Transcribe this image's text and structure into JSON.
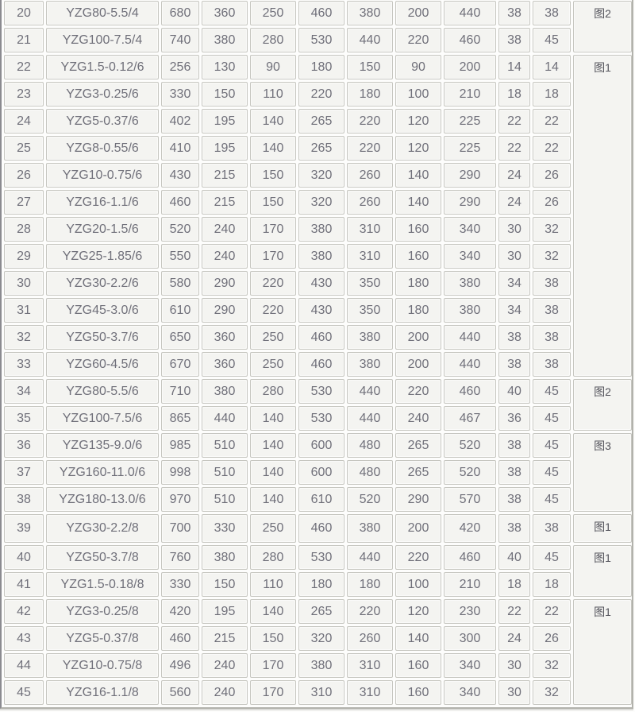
{
  "colors": {
    "page_bg": "#fdfdfc",
    "cell_bg": "#f4f4f1",
    "cell_border": "#c6c6c0",
    "text": "#70707a",
    "figure_text": "#54545c",
    "outer_border": "#b2b2ac",
    "left_border": "#8b8b90"
  },
  "table": {
    "rows": [
      {
        "no": "20",
        "model": "YZG80-5.5/4",
        "values": [
          "680",
          "360",
          "250",
          "460",
          "380",
          "200",
          "440",
          "38",
          "38"
        ],
        "fig": "图2",
        "fig_rowspan": 2
      },
      {
        "no": "21",
        "model": "YZG100-7.5/4",
        "values": [
          "740",
          "380",
          "280",
          "530",
          "440",
          "220",
          "460",
          "38",
          "45"
        ]
      },
      {
        "no": "22",
        "model": "YZG1.5-0.12/6",
        "values": [
          "256",
          "130",
          "90",
          "180",
          "150",
          "90",
          "200",
          "14",
          "14"
        ],
        "fig": "图1",
        "fig_rowspan": 12
      },
      {
        "no": "23",
        "model": "YZG3-0.25/6",
        "values": [
          "330",
          "150",
          "110",
          "220",
          "180",
          "100",
          "210",
          "18",
          "18"
        ]
      },
      {
        "no": "24",
        "model": "YZG5-0.37/6",
        "values": [
          "402",
          "195",
          "140",
          "265",
          "220",
          "120",
          "225",
          "22",
          "22"
        ]
      },
      {
        "no": "25",
        "model": "YZG8-0.55/6",
        "values": [
          "410",
          "195",
          "140",
          "265",
          "220",
          "120",
          "225",
          "22",
          "22"
        ]
      },
      {
        "no": "26",
        "model": "YZG10-0.75/6",
        "values": [
          "430",
          "215",
          "150",
          "320",
          "260",
          "140",
          "290",
          "24",
          "26"
        ]
      },
      {
        "no": "27",
        "model": "YZG16-1.1/6",
        "values": [
          "460",
          "215",
          "150",
          "320",
          "260",
          "140",
          "290",
          "24",
          "26"
        ]
      },
      {
        "no": "28",
        "model": "YZG20-1.5/6",
        "values": [
          "520",
          "240",
          "170",
          "380",
          "310",
          "160",
          "340",
          "30",
          "32"
        ]
      },
      {
        "no": "29",
        "model": "YZG25-1.85/6",
        "values": [
          "550",
          "240",
          "170",
          "380",
          "310",
          "160",
          "340",
          "30",
          "32"
        ]
      },
      {
        "no": "30",
        "model": "YZG30-2.2/6",
        "values": [
          "580",
          "290",
          "220",
          "430",
          "350",
          "180",
          "380",
          "34",
          "38"
        ]
      },
      {
        "no": "31",
        "model": "YZG45-3.0/6",
        "values": [
          "610",
          "290",
          "220",
          "430",
          "350",
          "180",
          "380",
          "34",
          "38"
        ]
      },
      {
        "no": "32",
        "model": "YZG50-3.7/6",
        "values": [
          "650",
          "360",
          "250",
          "460",
          "380",
          "200",
          "440",
          "38",
          "38"
        ]
      },
      {
        "no": "33",
        "model": "YZG60-4.5/6",
        "values": [
          "670",
          "360",
          "250",
          "460",
          "380",
          "200",
          "440",
          "38",
          "38"
        ]
      },
      {
        "no": "34",
        "model": "YZG80-5.5/6",
        "values": [
          "710",
          "380",
          "280",
          "530",
          "440",
          "220",
          "460",
          "40",
          "45"
        ],
        "fig": "图2",
        "fig_rowspan": 2
      },
      {
        "no": "35",
        "model": "YZG100-7.5/6",
        "values": [
          "865",
          "440",
          "140",
          "530",
          "440",
          "240",
          "467",
          "36",
          "45"
        ]
      },
      {
        "no": "36",
        "model": "YZG135-9.0/6",
        "values": [
          "985",
          "510",
          "140",
          "600",
          "480",
          "265",
          "520",
          "38",
          "45"
        ],
        "fig": "图3",
        "fig_rowspan": 3
      },
      {
        "no": "37",
        "model": "YZG160-11.0/6",
        "values": [
          "998",
          "510",
          "140",
          "600",
          "480",
          "265",
          "520",
          "38",
          "45"
        ]
      },
      {
        "no": "38",
        "model": "YZG180-13.0/6",
        "values": [
          "970",
          "510",
          "140",
          "610",
          "520",
          "290",
          "570",
          "38",
          "45"
        ]
      },
      {
        "no": "39",
        "model": "YZG30-2.2/8",
        "values": [
          "700",
          "330",
          "250",
          "460",
          "380",
          "200",
          "420",
          "38",
          "38"
        ],
        "fig": "图1",
        "fig_rowspan": 1
      },
      {
        "no": "40",
        "model": "YZG50-3.7/8",
        "values": [
          "760",
          "380",
          "280",
          "530",
          "440",
          "220",
          "460",
          "40",
          "45"
        ],
        "fig": "图1",
        "fig_rowspan": 2
      },
      {
        "no": "41",
        "model": "YZG1.5-0.18/8",
        "values": [
          "330",
          "150",
          "110",
          "180",
          "180",
          "100",
          "210",
          "18",
          "18"
        ]
      },
      {
        "no": "42",
        "model": "YZG3-0.25/8",
        "values": [
          "420",
          "195",
          "140",
          "265",
          "220",
          "120",
          "230",
          "22",
          "22"
        ],
        "fig": "图1",
        "fig_rowspan": 4
      },
      {
        "no": "43",
        "model": "YZG5-0.37/8",
        "values": [
          "460",
          "215",
          "150",
          "320",
          "260",
          "140",
          "300",
          "24",
          "26"
        ]
      },
      {
        "no": "44",
        "model": "YZG10-0.75/8",
        "values": [
          "496",
          "240",
          "170",
          "380",
          "310",
          "160",
          "340",
          "30",
          "32"
        ]
      },
      {
        "no": "45",
        "model": "YZG16-1.1/8",
        "values": [
          "560",
          "240",
          "170",
          "310",
          "310",
          "160",
          "340",
          "30",
          "32"
        ]
      }
    ]
  }
}
